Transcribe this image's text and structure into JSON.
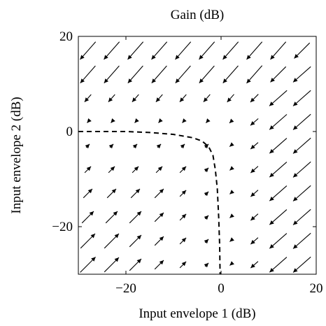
{
  "chart_data": {
    "type": "quiver",
    "title": "Gain (dB)",
    "xlabel": "Input envelope 1 (dB)",
    "ylabel": "Input envelope 2 (dB)",
    "xlim": [
      -30,
      20
    ],
    "ylim": [
      -30,
      20
    ],
    "xticks": [
      -20,
      0,
      20
    ],
    "yticks": [
      -20,
      0,
      20
    ],
    "xtick_labels": [
      "−20",
      "0",
      "20"
    ],
    "ytick_labels": [
      "−20",
      "0",
      "20"
    ],
    "grid": false,
    "arrow_grid": {
      "x": [
        -28,
        -23,
        -18,
        -13,
        -8,
        -3,
        2,
        7,
        12,
        17
      ],
      "y": [
        17,
        12,
        7,
        2,
        -3,
        -8,
        -13,
        -18,
        -23,
        -28
      ]
    },
    "threshold_curve": {
      "style": "dashed",
      "points": [
        [
          -30,
          0
        ],
        [
          -20,
          0
        ],
        [
          -15,
          -0.2
        ],
        [
          -10,
          -0.6
        ],
        [
          -6,
          -1.3
        ],
        [
          -4,
          -2
        ],
        [
          -2.6,
          -3.2
        ],
        [
          -1.7,
          -5
        ],
        [
          -1.2,
          -8
        ],
        [
          -0.8,
          -12
        ],
        [
          -0.5,
          -18
        ],
        [
          -0.3,
          -24
        ],
        [
          -0.2,
          -30
        ]
      ]
    }
  }
}
